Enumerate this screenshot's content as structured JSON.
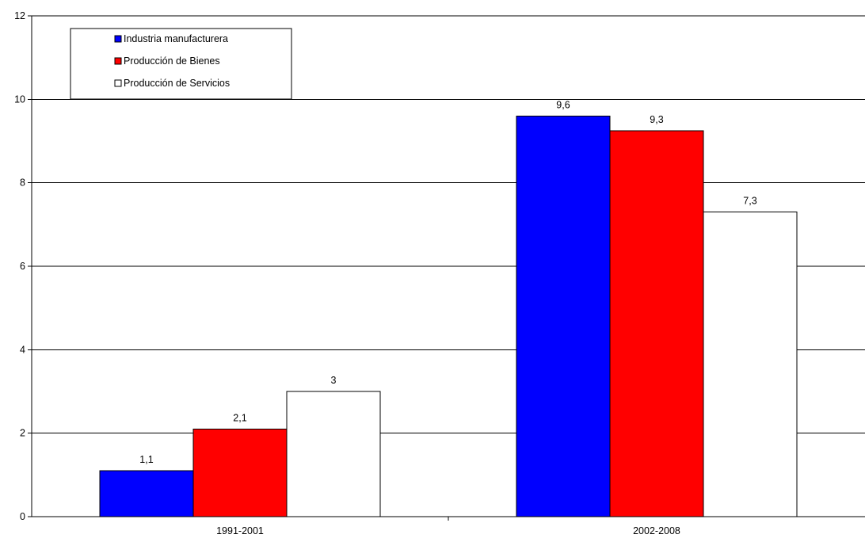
{
  "chart_data": {
    "type": "bar",
    "categories": [
      "1991-2001",
      "2002-2008"
    ],
    "series": [
      {
        "name": "Industria manufacturera",
        "color": "#0000ff",
        "values": [
          1.1,
          9.6
        ],
        "labels": [
          "1,1",
          "9,6"
        ]
      },
      {
        "name": "Producción de Bienes",
        "color": "#ff0000",
        "values": [
          2.1,
          9.25
        ],
        "labels": [
          "2,1",
          "9,3"
        ]
      },
      {
        "name": "Producción de Servicios",
        "color": "#ffffff",
        "values": [
          3.0,
          7.3
        ],
        "labels": [
          "3",
          "7,3"
        ]
      }
    ],
    "ylim": [
      0,
      12
    ],
    "yticks": [
      0,
      2,
      4,
      6,
      8,
      10,
      12
    ],
    "grid": true,
    "legend_position": "top-left",
    "title": "",
    "xlabel": "",
    "ylabel": ""
  }
}
